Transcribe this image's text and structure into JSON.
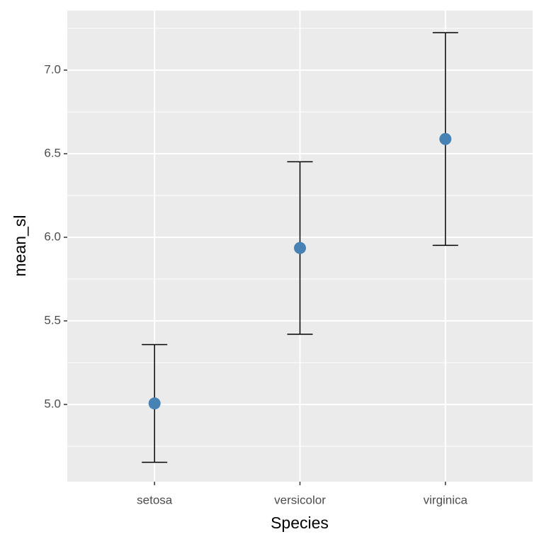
{
  "chart_data": {
    "type": "errorbar",
    "x_label": "Species",
    "y_label": "mean_sl",
    "categories": [
      "setosa",
      "versicolor",
      "virginica"
    ],
    "values": [
      5.006,
      5.936,
      6.588
    ],
    "errors": [
      0.352,
      0.516,
      0.636
    ],
    "color": "#4682b4",
    "ylim": [
      4.538,
      7.356
    ],
    "yticks": [
      {
        "value": 5,
        "label": "5.0"
      },
      {
        "value": 5.5,
        "label": "5.5"
      },
      {
        "value": 6,
        "label": "6.0"
      },
      {
        "value": 6.5,
        "label": "6.5"
      },
      {
        "value": 7,
        "label": "7.0"
      }
    ],
    "minor_yticks": [
      4.75,
      5.25,
      5.75,
      6.25,
      6.75,
      7.25
    ],
    "grid": true
  }
}
